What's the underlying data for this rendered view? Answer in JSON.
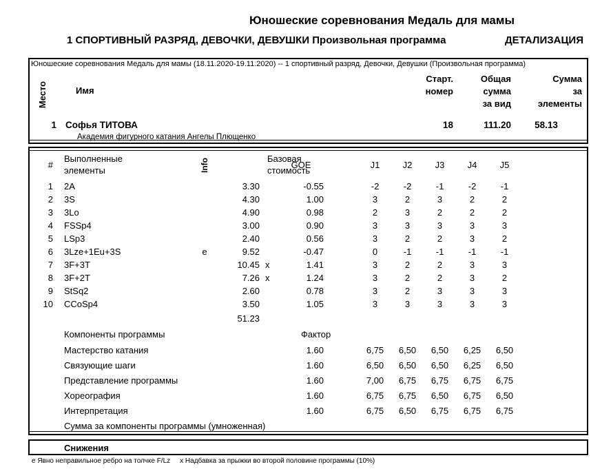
{
  "header": {
    "title": "Юношеские соревнования Медаль для мамы",
    "subtitle": "1 СПОРТИВНЫЙ РАЗРЯД, ДЕВОЧКИ, ДЕВУШКИ Произвольная программа",
    "subtitle_right": "ДЕТАЛИЗАЦИЯ"
  },
  "result_box": {
    "event_info": "Юношеские соревнования Медаль для мамы (18.11.2020-19.11.2020)  --  1 спортивный разряд, Девочки, Девушки  (Произвольная программа)",
    "col_place": "Место",
    "col_name": "Имя",
    "col_start": [
      "Старт.",
      "номер"
    ],
    "col_total": [
      "Общая",
      "сумма",
      "за вид"
    ],
    "col_elements": [
      "Сумма",
      "за",
      "элементы"
    ],
    "athlete": {
      "place": "1",
      "name": "Софья ТИТОВА",
      "club": "Академия фигурного катания Ангелы Плющенко",
      "start_number": "18",
      "total_score": "111.20",
      "element_score": "58.13"
    }
  },
  "elements_box": {
    "col_num": "#",
    "col_executed": [
      "Выполненные",
      "элементы"
    ],
    "col_info": "Info",
    "col_base": [
      "Базовая",
      "стоимость"
    ],
    "col_goe": "GOE",
    "judges": [
      "J1",
      "J2",
      "J3",
      "J4",
      "J5"
    ],
    "rows": [
      {
        "n": "1",
        "name": "2A",
        "info": "",
        "base": "3.30",
        "x": "",
        "goe": "-0.55",
        "j": [
          "-2",
          "-2",
          "-1",
          "-2",
          "-1"
        ]
      },
      {
        "n": "2",
        "name": "3S",
        "info": "",
        "base": "4.30",
        "x": "",
        "goe": "1.00",
        "j": [
          "3",
          "2",
          "3",
          "2",
          "2"
        ]
      },
      {
        "n": "3",
        "name": "3Lo",
        "info": "",
        "base": "4.90",
        "x": "",
        "goe": "0.98",
        "j": [
          "2",
          "3",
          "2",
          "2",
          "2"
        ]
      },
      {
        "n": "4",
        "name": "FSSp4",
        "info": "",
        "base": "3.00",
        "x": "",
        "goe": "0.90",
        "j": [
          "3",
          "3",
          "3",
          "3",
          "3"
        ]
      },
      {
        "n": "5",
        "name": "LSp3",
        "info": "",
        "base": "2.40",
        "x": "",
        "goe": "0.56",
        "j": [
          "3",
          "2",
          "2",
          "3",
          "2"
        ]
      },
      {
        "n": "6",
        "name": "3Lze+1Eu+3S",
        "info": "e",
        "base": "9.52",
        "x": "",
        "goe": "-0.47",
        "j": [
          "0",
          "-1",
          "-1",
          "-1",
          "-1"
        ]
      },
      {
        "n": "7",
        "name": "3F+3T",
        "info": "",
        "base": "10.45",
        "x": "x",
        "goe": "1.41",
        "j": [
          "3",
          "2",
          "2",
          "3",
          "3"
        ]
      },
      {
        "n": "8",
        "name": "3F+2T",
        "info": "",
        "base": "7.26",
        "x": "x",
        "goe": "1.24",
        "j": [
          "3",
          "2",
          "2",
          "3",
          "2"
        ]
      },
      {
        "n": "9",
        "name": "StSq2",
        "info": "",
        "base": "2.60",
        "x": "",
        "goe": "0.78",
        "j": [
          "3",
          "2",
          "3",
          "3",
          "3"
        ]
      },
      {
        "n": "10",
        "name": "CCoSp4",
        "info": "",
        "base": "3.50",
        "x": "",
        "goe": "1.05",
        "j": [
          "3",
          "3",
          "3",
          "3",
          "3"
        ]
      }
    ],
    "base_total": "51.23",
    "components_title": "Компоненты программы",
    "factor_label": "Фактор",
    "components": [
      {
        "name": "Мастерство катания",
        "factor": "1.60",
        "j": [
          "6,75",
          "6,50",
          "6,50",
          "6,25",
          "6,50"
        ]
      },
      {
        "name": "Связующие шаги",
        "factor": "1.60",
        "j": [
          "6,50",
          "6,50",
          "6,50",
          "6,25",
          "6,50"
        ]
      },
      {
        "name": "Представление программы",
        "factor": "1.60",
        "j": [
          "7,00",
          "6,75",
          "6,75",
          "6,75",
          "6,75"
        ]
      },
      {
        "name": "Хореография",
        "factor": "1.60",
        "j": [
          "6,75",
          "6,75",
          "6,50",
          "6,75",
          "6,50"
        ]
      },
      {
        "name": "Интерпретация",
        "factor": "1.60",
        "j": [
          "6,75",
          "6,50",
          "6,75",
          "6,75",
          "6,75"
        ]
      }
    ],
    "components_total_label": "Сумма за компоненты программы (умноженная)"
  },
  "deductions_box": {
    "label": "Снижения"
  },
  "footnotes": {
    "edge": "е Явно неправильное ребро на толчке F/Lz",
    "bonus": "x Надбавка за прыжки во второй половине программы (10%)"
  }
}
